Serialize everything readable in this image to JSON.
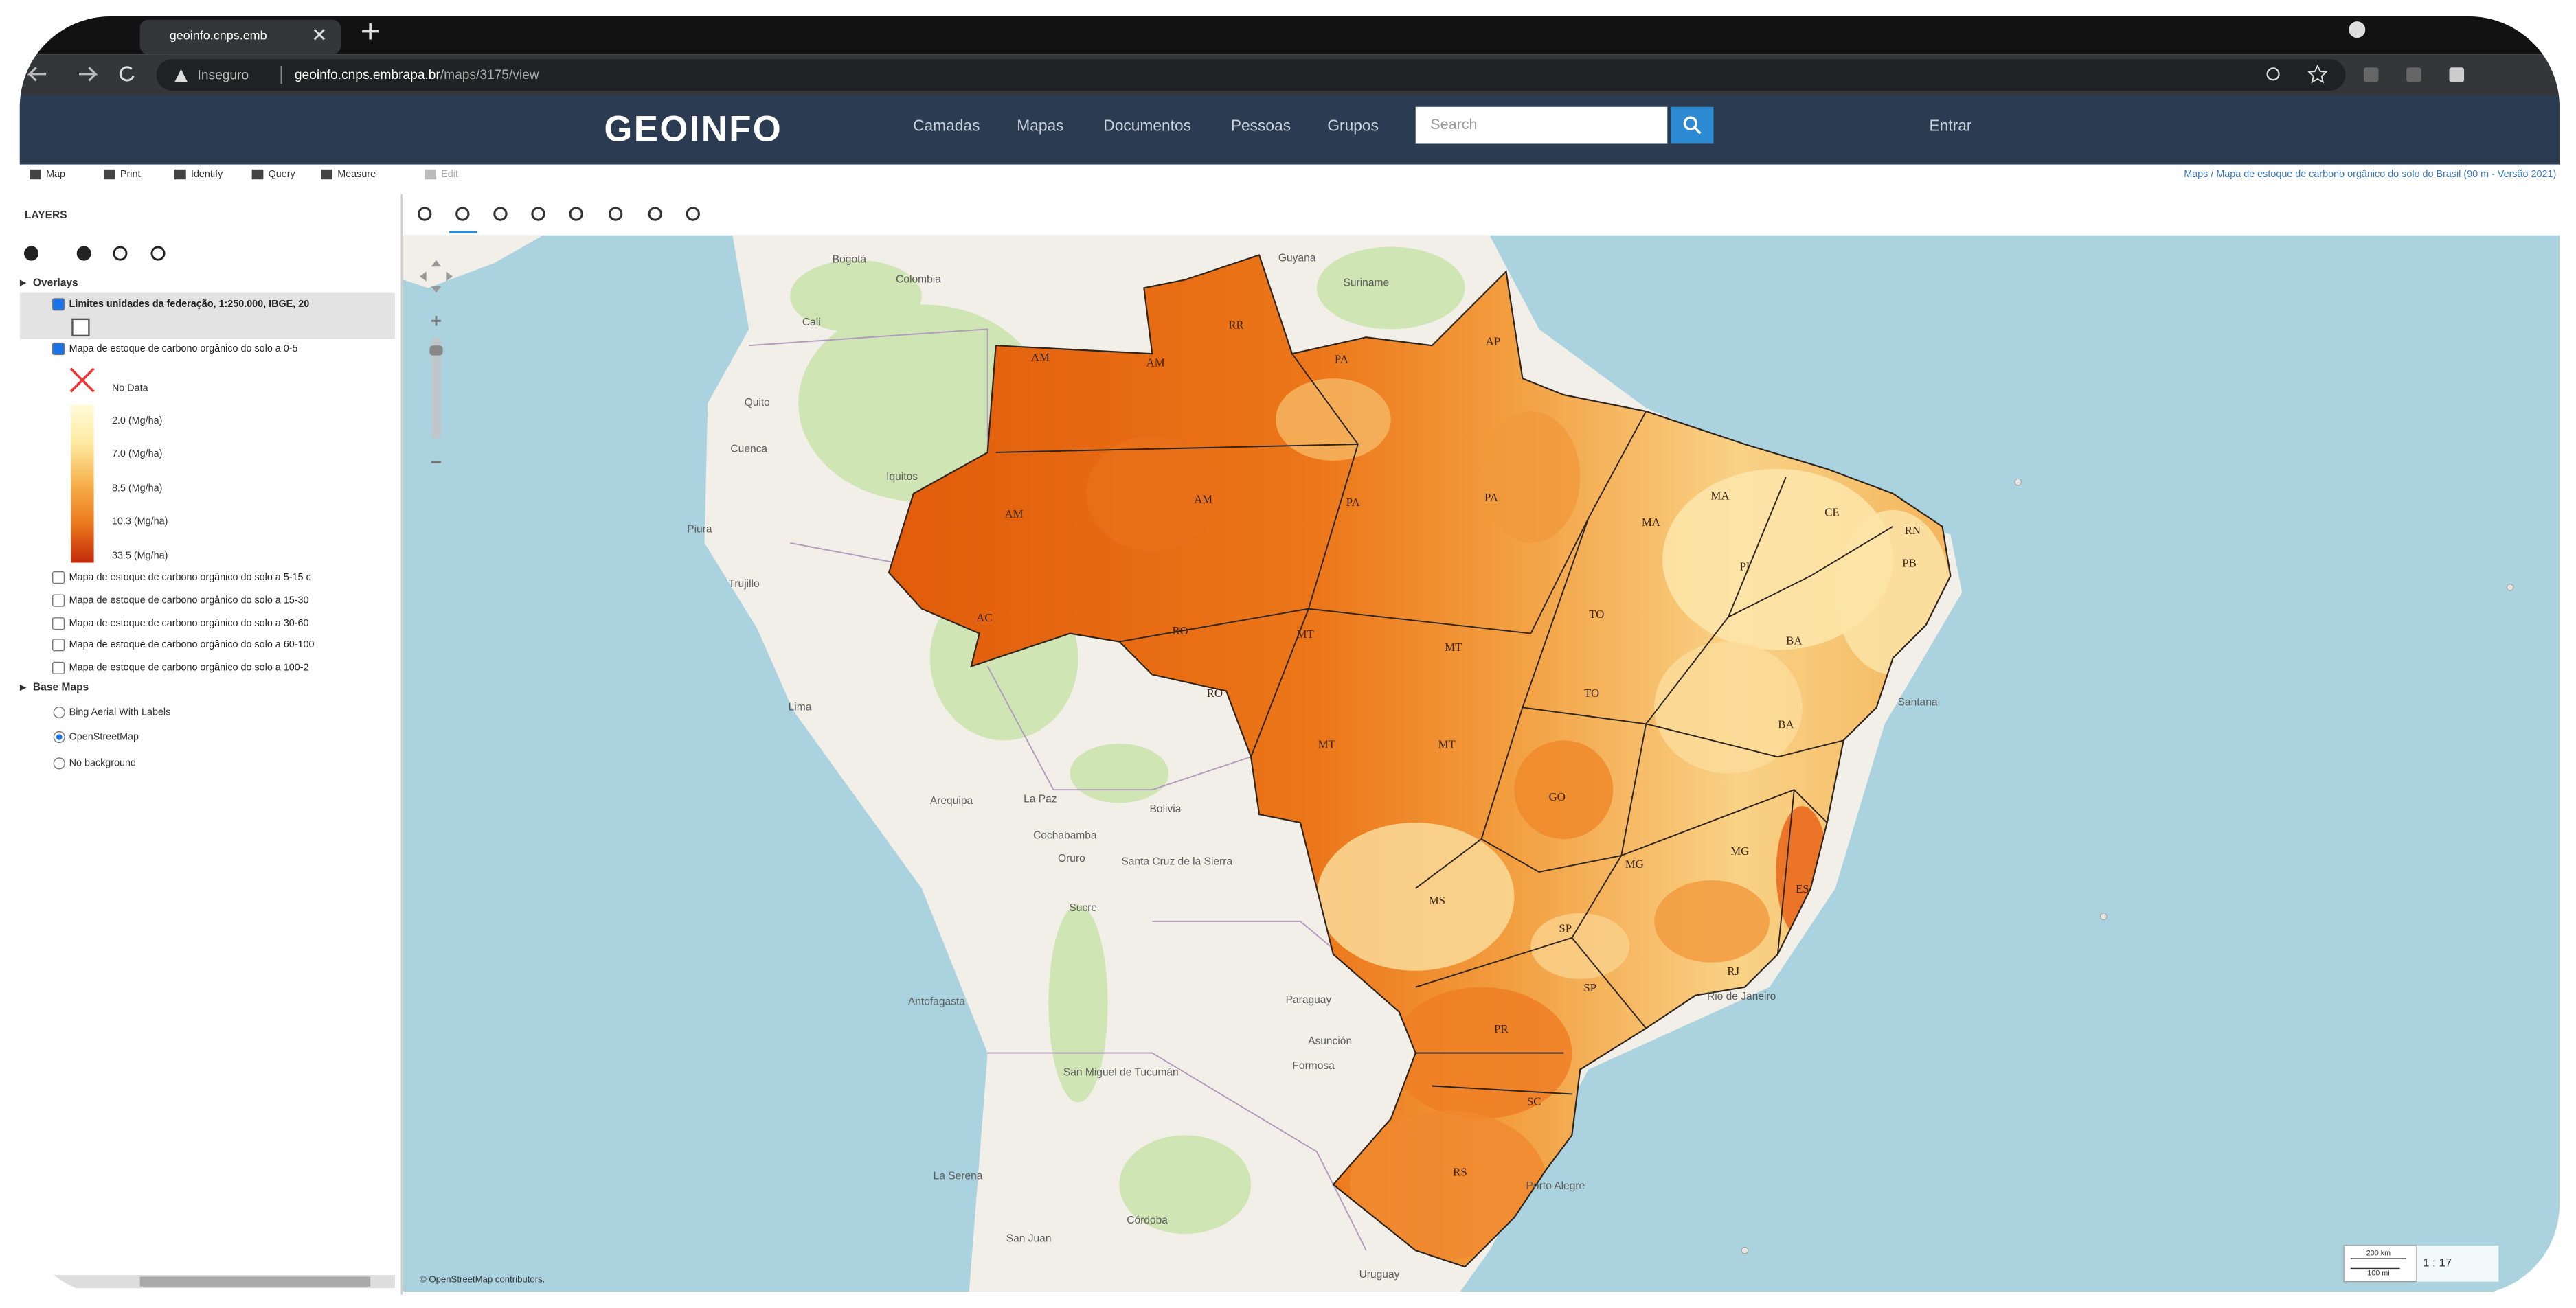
{
  "browser": {
    "tab_title": "geoinfo.cnps.emb",
    "security": "Inseguro",
    "url_host": "geoinfo.cnps.embrapa.br",
    "url_path": "/maps/3175/view"
  },
  "navbar": {
    "logo": "GEOINFO",
    "links": [
      "Camadas",
      "Mapas",
      "Documentos",
      "Pessoas",
      "Grupos"
    ],
    "search_placeholder": "Search",
    "login": "Entrar"
  },
  "toolbar": {
    "items": [
      "Map",
      "Print",
      "Identify",
      "Query",
      "Measure",
      "Edit"
    ],
    "breadcrumb": "Maps / Mapa de estoque de carbono orgânico do solo do Brasil (90 m - Versão 2021)"
  },
  "layers_panel": {
    "title": "LAYERS",
    "overlays_heading": "Overlays",
    "overlays": [
      "Limites unidades da federação, 1:250.000, IBGE, 20",
      "Mapa de estoque de carbono orgânico do solo a 0-5",
      "Mapa de estoque de carbono orgânico do solo a 5-15 c",
      "Mapa de estoque de carbono orgânico do solo a 15-30",
      "Mapa de estoque de carbono orgânico do solo a 30-60",
      "Mapa de estoque de carbono orgânico do solo a 60-100",
      "Mapa de estoque de carbono orgânico do solo a 100-2"
    ],
    "legend": {
      "no_data": "No Data",
      "entries": [
        "2.0 (Mg/ha)",
        "7.0 (Mg/ha)",
        "8.5 (Mg/ha)",
        "10.3 (Mg/ha)",
        "33.5 (Mg/ha)"
      ]
    },
    "base_maps_heading": "Base Maps",
    "base_maps": [
      "Bing Aerial With Labels",
      "OpenStreetMap",
      "No background"
    ]
  },
  "map": {
    "state_labels": [
      "AM",
      "AM",
      "AM",
      "AM",
      "RR",
      "AP",
      "PA",
      "PA",
      "PA",
      "MA",
      "MA",
      "CE",
      "RN",
      "PB",
      "PI",
      "TO",
      "TO",
      "BA",
      "BA",
      "AC",
      "RO",
      "RO",
      "MT",
      "MT",
      "MT",
      "MT",
      "GO",
      "MG",
      "MG",
      "ES",
      "MS",
      "SP",
      "SP",
      "PR",
      "SC",
      "RS",
      "RJ"
    ],
    "place_labels": [
      "Guyana",
      "Suriname",
      "Colombia",
      "Bogotá",
      "Cali",
      "Quito",
      "Cuenca",
      "Iquitos",
      "Piura",
      "Trujillo",
      "Lima",
      "Arequipa",
      "La Paz",
      "Bolivia",
      "Cochabamba",
      "Oruro",
      "Santa Cruz de la Sierra",
      "Sucre",
      "Paraguay",
      "Asunción",
      "Formosa",
      "San Miguel de Tucumán",
      "Antofagasta",
      "La Serena",
      "Córdoba",
      "San Juan",
      "Uruguay",
      "Santana",
      "Porto Alegre",
      "Rio de Janeiro"
    ],
    "attribution": "© OpenStreetMap contributors.",
    "scale_bar": [
      "200 km",
      "100 mi"
    ],
    "scale_ratio": "1 : 17"
  }
}
